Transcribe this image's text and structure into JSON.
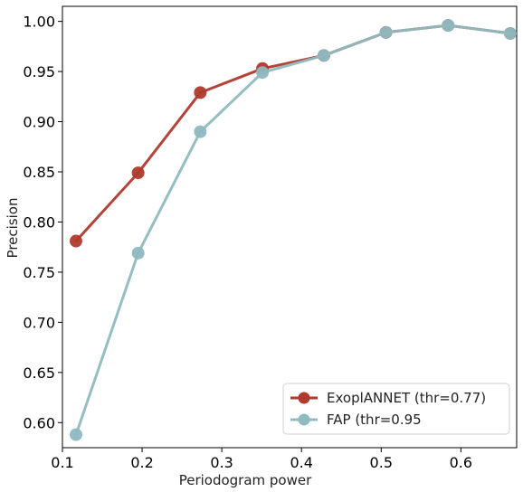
{
  "chart_data": {
    "type": "line",
    "xlabel": "Periodogram power",
    "ylabel": "Precision",
    "xlim": [
      0.1,
      0.67
    ],
    "ylim": [
      0.575,
      1.015
    ],
    "xticks": [
      "0.1",
      "0.2",
      "0.3",
      "0.4",
      "0.5",
      "0.6"
    ],
    "xtick_values": [
      0.1,
      0.2,
      0.3,
      0.4,
      0.5,
      0.6
    ],
    "yticks": [
      "0.60",
      "0.65",
      "0.70",
      "0.75",
      "0.80",
      "0.85",
      "0.90",
      "0.95",
      "1.00"
    ],
    "ytick_values": [
      0.6,
      0.65,
      0.7,
      0.75,
      0.8,
      0.85,
      0.9,
      0.95,
      1.0
    ],
    "grid": false,
    "legend_position": "bottom-right",
    "series": [
      {
        "name": "ExoplANNET (thr=0.77)",
        "color": "#b03a2e",
        "x": [
          0.117,
          0.195,
          0.273,
          0.351,
          0.428,
          0.506,
          0.584,
          0.662
        ],
        "y": [
          0.781,
          0.849,
          0.929,
          0.953,
          0.966,
          0.989,
          0.996,
          0.988
        ]
      },
      {
        "name": "FAP (thr=0.95",
        "color": "#8fbac0",
        "x": [
          0.117,
          0.195,
          0.273,
          0.351,
          0.428,
          0.506,
          0.584,
          0.662
        ],
        "y": [
          0.588,
          0.769,
          0.89,
          0.949,
          0.966,
          0.989,
          0.996,
          0.988
        ]
      }
    ]
  }
}
